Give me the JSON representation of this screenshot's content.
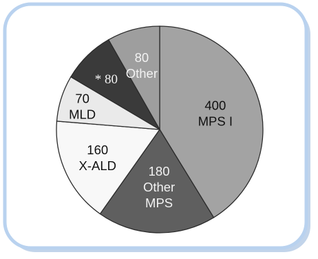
{
  "chart_data": {
    "type": "pie",
    "slices": [
      {
        "lines": [
          "400",
          "MPS I"
        ],
        "value": 400,
        "fill": "#a3a3a3",
        "text_color": "#111111",
        "label_font": "sans"
      },
      {
        "lines": [
          "180",
          "Other",
          "MPS"
        ],
        "value": 180,
        "fill": "#5f5f5f",
        "text_color": "#f2f2f2",
        "label_font": "sans"
      },
      {
        "lines": [
          "160",
          "X-ALD"
        ],
        "value": 160,
        "fill": "#f8f8f8",
        "text_color": "#111111",
        "label_font": "sans"
      },
      {
        "lines": [
          "70",
          "MLD"
        ],
        "value": 70,
        "fill": "#eaeaea",
        "text_color": "#111111",
        "label_font": "sans"
      },
      {
        "lines": [
          "* 80"
        ],
        "value": 80,
        "fill": "#3a3a3a",
        "text_color": "#f2f2f2",
        "label_font": "serif"
      },
      {
        "lines": [
          "80",
          "Other"
        ],
        "value": 80,
        "fill": "#9e9e9e",
        "text_color": "#f2f2f2",
        "label_font": "sans"
      }
    ],
    "colors": {
      "panel_border": "#b9d2ef",
      "panel_shadow": "#8fb1d9",
      "slice_outline": "#2b2b2b"
    }
  }
}
